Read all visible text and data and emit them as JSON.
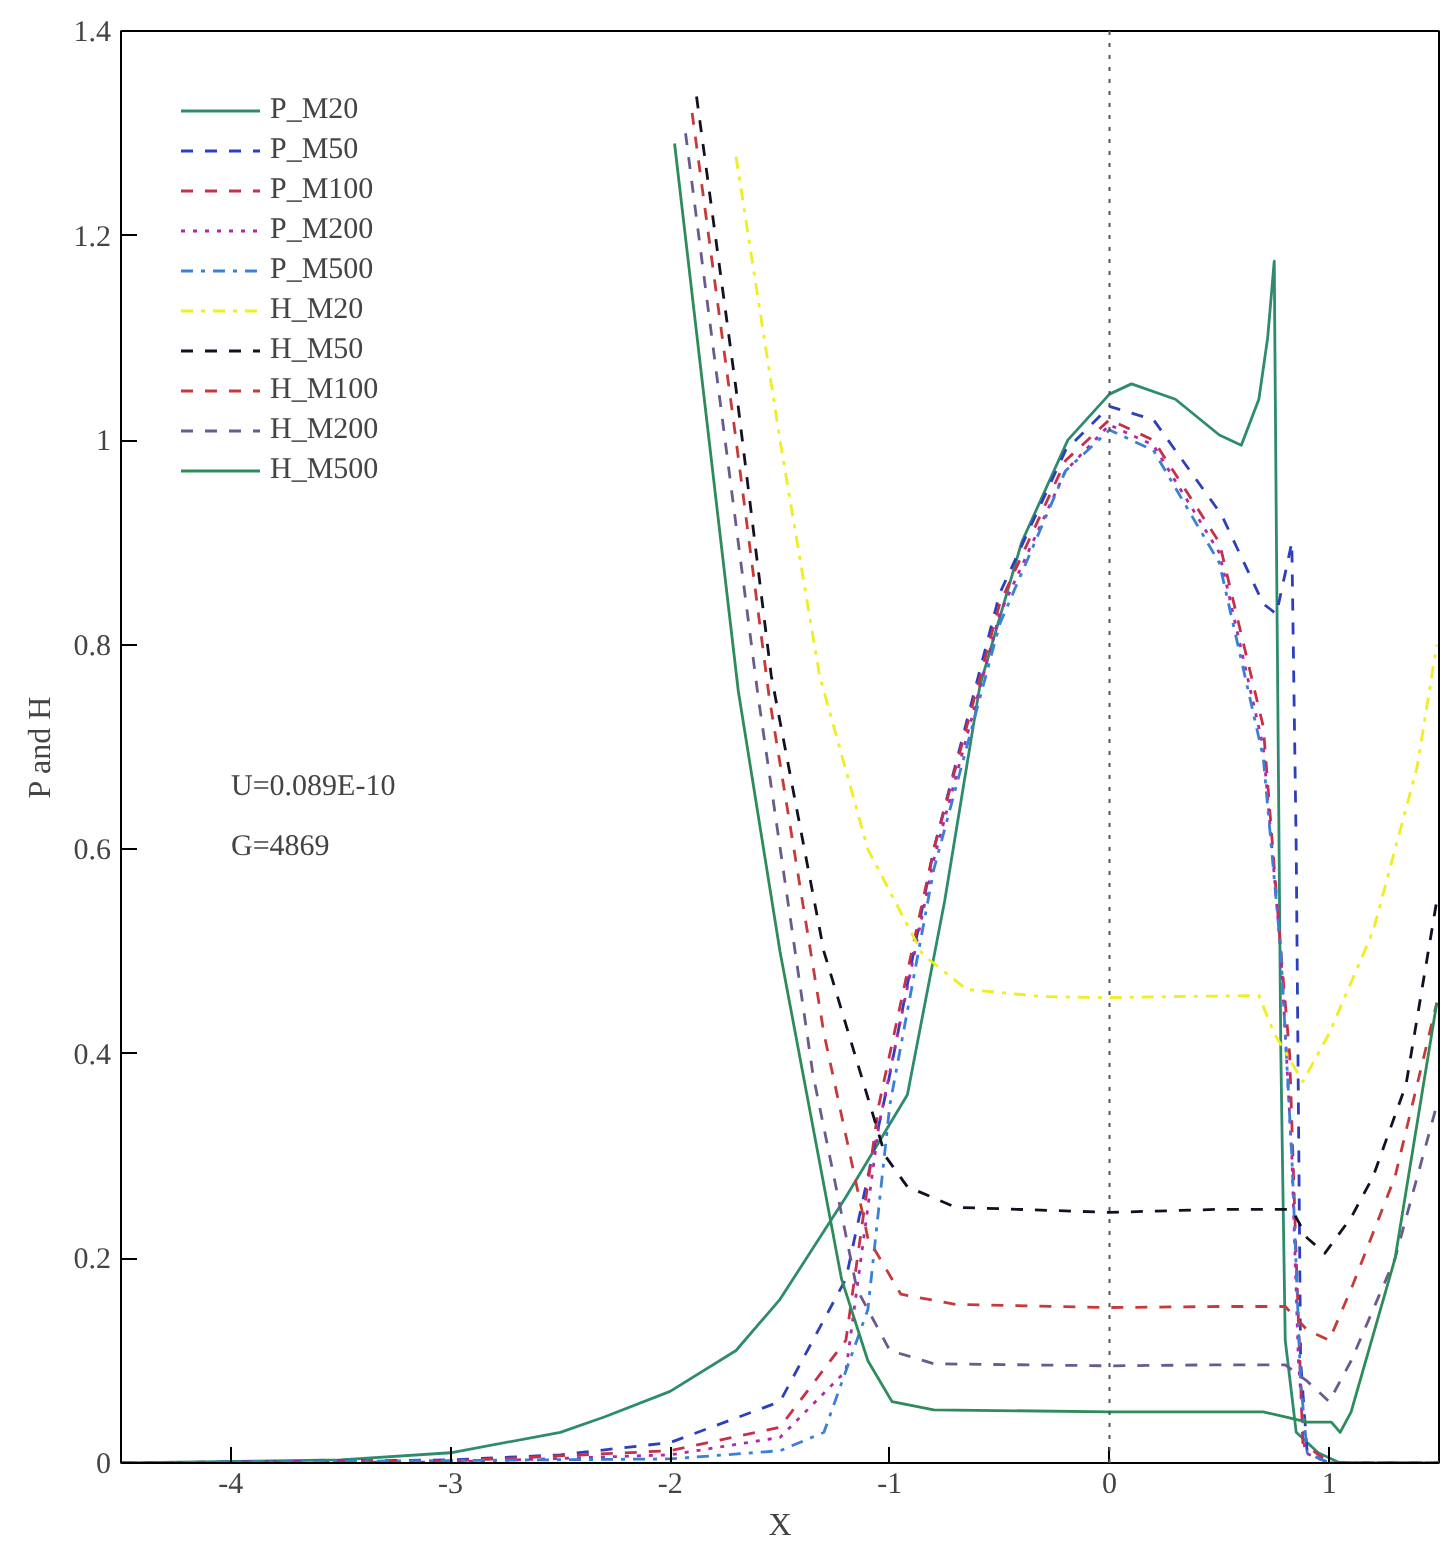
{
  "chart_data": {
    "type": "line",
    "xlabel": "X",
    "ylabel": "P and H",
    "xlim": [
      -4.5,
      1.5
    ],
    "ylim": [
      0,
      1.4
    ],
    "xticks": [
      -4,
      -3,
      -2,
      -1,
      0,
      1
    ],
    "yticks": [
      0,
      0.2,
      0.4,
      0.6,
      0.8,
      1,
      1.2,
      1.4
    ],
    "grid": false,
    "legend": "top left",
    "annotations": [
      "U=0.089E-10",
      "G=4869"
    ],
    "ref_lines": [
      {
        "axis": "x",
        "value": 0,
        "label": null,
        "color": "#555555",
        "line_style": "dotted"
      }
    ],
    "series": [
      {
        "name": "P_M20",
        "color": "#2e8b6e",
        "line_style": "solid",
        "x": [
          -4.5,
          -3.5,
          -3,
          -2.5,
          -2.3,
          -2,
          -1.7,
          -1.5,
          -1.2,
          -0.92,
          -0.75,
          -0.59,
          -0.4,
          -0.19,
          0,
          0.1,
          0.3,
          0.5,
          0.6,
          0.68,
          0.72,
          0.75,
          0.76,
          0.78,
          0.8,
          0.85,
          0.95,
          1.05,
          1.5
        ],
        "values": [
          0,
          0.003,
          0.01,
          0.03,
          0.045,
          0.07,
          0.11,
          0.16,
          0.26,
          0.36,
          0.55,
          0.76,
          0.9,
          1.0,
          1.045,
          1.055,
          1.04,
          1.005,
          0.995,
          1.04,
          1.1,
          1.175,
          0.9,
          0.4,
          0.12,
          0.03,
          0.01,
          0,
          0
        ]
      },
      {
        "name": "P_M50",
        "color": "#2b3fbf",
        "line_style": "dashed",
        "x": [
          -4.5,
          -3,
          -2.5,
          -2,
          -1.5,
          -1.2,
          -1,
          -0.8,
          -0.5,
          -0.2,
          0,
          0.2,
          0.51,
          0.7,
          0.76,
          0.8,
          0.83,
          0.85,
          0.87,
          0.9,
          1,
          1.5
        ],
        "values": [
          0,
          0.003,
          0.008,
          0.02,
          0.06,
          0.18,
          0.38,
          0.6,
          0.85,
          0.99,
          1.033,
          1.02,
          0.927,
          0.84,
          0.83,
          0.87,
          0.9,
          0.6,
          0.1,
          0.01,
          0,
          0
        ]
      },
      {
        "name": "P_M100",
        "color": "#c8304a",
        "line_style": "dashed",
        "x": [
          -4.5,
          -3,
          -2,
          -1.5,
          -1.2,
          -1.05,
          -0.8,
          -0.5,
          -0.2,
          0,
          0.2,
          0.5,
          0.7,
          0.78,
          0.82,
          0.85,
          0.88,
          1,
          1.5
        ],
        "values": [
          0,
          0.002,
          0.012,
          0.035,
          0.12,
          0.35,
          0.6,
          0.84,
          0.98,
          1.02,
          1.0,
          0.9,
          0.72,
          0.5,
          0.4,
          0.2,
          0.02,
          0,
          0
        ]
      },
      {
        "name": "P_M200",
        "color": "#b02aa8",
        "line_style": "dotted",
        "x": [
          -4.5,
          -3,
          -2,
          -1.5,
          -1.2,
          -1.05,
          -0.8,
          -0.5,
          -0.2,
          0,
          0.2,
          0.5,
          0.7,
          0.78,
          0.83,
          0.86,
          0.89,
          1,
          1.5
        ],
        "values": [
          0,
          0.001,
          0.008,
          0.025,
          0.09,
          0.33,
          0.59,
          0.83,
          0.97,
          1.015,
          0.995,
          0.89,
          0.7,
          0.5,
          0.3,
          0.1,
          0.01,
          0,
          0
        ]
      },
      {
        "name": "P_M500",
        "color": "#3a7fd8",
        "line_style": "dashdot",
        "x": [
          -4.5,
          -2,
          -1.5,
          -1.3,
          -1.1,
          -1,
          -0.8,
          -0.5,
          -0.2,
          0,
          0.2,
          0.5,
          0.7,
          0.78,
          0.83,
          0.87,
          0.9,
          1,
          1.5
        ],
        "values": [
          0,
          0.004,
          0.012,
          0.03,
          0.15,
          0.35,
          0.58,
          0.82,
          0.97,
          1.01,
          0.99,
          0.88,
          0.69,
          0.5,
          0.3,
          0.08,
          0.01,
          0,
          0
        ]
      },
      {
        "name": "H_M20",
        "color": "#eeee22",
        "line_style": "dashdot",
        "x": [
          -1.7,
          -1.5,
          -1.32,
          -1.1,
          -0.85,
          -0.65,
          -0.3,
          0,
          0.3,
          0.68,
          0.75,
          0.88,
          1,
          1.2,
          1.4,
          1.49
        ],
        "values": [
          1.277,
          1.0,
          0.77,
          0.6,
          0.497,
          0.463,
          0.456,
          0.455,
          0.456,
          0.457,
          0.42,
          0.373,
          0.42,
          0.52,
          0.68,
          0.8
        ]
      },
      {
        "name": "H_M50",
        "color": "#111122",
        "line_style": "dashed",
        "x": [
          -1.88,
          -1.7,
          -1.54,
          -1.3,
          -1.02,
          -0.92,
          -0.7,
          0,
          0.5,
          0.83,
          0.9,
          0.98,
          1.1,
          1.2,
          1.35,
          1.49
        ],
        "values": [
          1.336,
          1.05,
          0.77,
          0.5,
          0.3,
          0.27,
          0.25,
          0.245,
          0.248,
          0.248,
          0.22,
          0.205,
          0.24,
          0.28,
          0.37,
          0.55
        ]
      },
      {
        "name": "H_M100",
        "color": "#c83a3a",
        "line_style": "dashed",
        "x": [
          -1.9,
          -1.7,
          -1.55,
          -1.3,
          -1.1,
          -0.95,
          -0.7,
          0,
          0.5,
          0.8,
          0.9,
          1.0,
          1.1,
          1.3,
          1.49
        ],
        "values": [
          1.32,
          1.0,
          0.75,
          0.42,
          0.22,
          0.165,
          0.155,
          0.152,
          0.153,
          0.153,
          0.13,
          0.12,
          0.17,
          0.28,
          0.45
        ]
      },
      {
        "name": "H_M200",
        "color": "#6a5a90",
        "line_style": "dashed",
        "x": [
          -1.93,
          -1.75,
          -1.6,
          -1.35,
          -1.15,
          -1.0,
          -0.8,
          0,
          0.5,
          0.8,
          0.9,
          1.0,
          1.1,
          1.3,
          1.49
        ],
        "values": [
          1.3,
          1.0,
          0.75,
          0.38,
          0.17,
          0.11,
          0.097,
          0.095,
          0.096,
          0.096,
          0.08,
          0.06,
          0.1,
          0.2,
          0.35
        ]
      },
      {
        "name": "H_M500",
        "color": "#2e8b5a",
        "line_style": "solid",
        "x": [
          -1.98,
          -1.85,
          -1.69,
          -1.5,
          -1.22,
          -1.1,
          -0.99,
          -0.8,
          0,
          0.5,
          0.7,
          0.8,
          0.9,
          1.01,
          1.05,
          1.1,
          1.3,
          1.49
        ],
        "values": [
          1.29,
          1.05,
          0.755,
          0.5,
          0.18,
          0.1,
          0.06,
          0.052,
          0.05,
          0.05,
          0.05,
          0.045,
          0.04,
          0.04,
          0.03,
          0.05,
          0.2,
          0.45
        ]
      }
    ]
  }
}
